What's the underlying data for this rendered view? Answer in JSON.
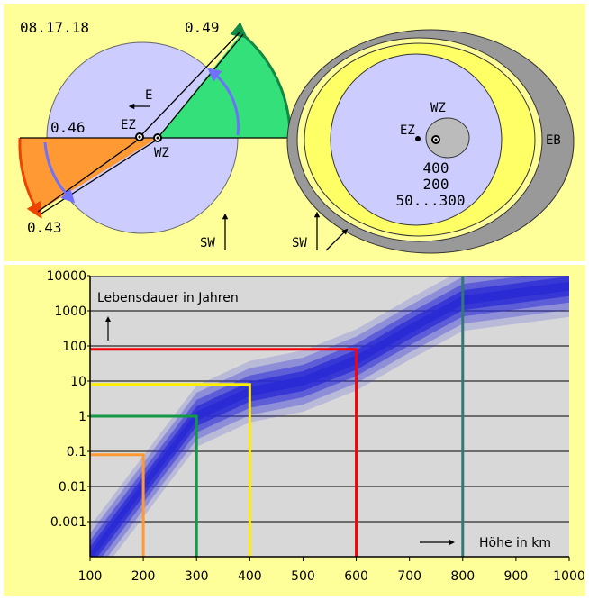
{
  "date_label": "08.17.18",
  "diagram_left": {
    "value_top": "0.49",
    "value_left": "0.46",
    "value_bottom": "0.43",
    "label_e": "E",
    "label_ez": "EZ",
    "label_wz": "WZ",
    "label_sw": "SW"
  },
  "diagram_right": {
    "label_wz": "WZ",
    "label_ez": "EZ",
    "label_eb": "EB",
    "label_sw": "SW",
    "distances": [
      "400",
      "200",
      "50...300"
    ]
  },
  "colors": {
    "panel_bg": "#ffff99",
    "disc": "#ccccff",
    "green": "#33e07a",
    "orange": "#ff9933",
    "grey": "#999999",
    "yellow": "#ffff66",
    "band": "#2b2bd6",
    "plot_bg": "#d8d8d8"
  },
  "chart_data": {
    "type": "line",
    "ylabel": "Lebensdauer in Jahren",
    "xlabel": "Höhe in km",
    "x_ticks": [
      "100",
      "200",
      "300",
      "400",
      "500",
      "600",
      "700",
      "800",
      "900",
      "1000"
    ],
    "y_ticks": [
      "10000",
      "1000",
      "100",
      "10",
      "1",
      "0.1",
      "0.01",
      "0.001"
    ],
    "xlim": [
      100,
      1000
    ],
    "ylim": [
      0.0001,
      10000
    ],
    "y_scale": "log",
    "band_center": [
      {
        "x": 100,
        "y": 0.0001
      },
      {
        "x": 200,
        "y": 0.01
      },
      {
        "x": 300,
        "y": 1
      },
      {
        "x": 400,
        "y": 5
      },
      {
        "x": 500,
        "y": 10
      },
      {
        "x": 600,
        "y": 40
      },
      {
        "x": 700,
        "y": 300
      },
      {
        "x": 800,
        "y": 2000
      },
      {
        "x": 1000,
        "y": 5000
      }
    ],
    "markers": [
      {
        "x": 200,
        "y": 0.08,
        "color": "#ff9933"
      },
      {
        "x": 300,
        "y": 1,
        "color": "#119944"
      },
      {
        "x": 400,
        "y": 8,
        "color": "#ffee00"
      },
      {
        "x": 600,
        "y": 80,
        "color": "#ff0000"
      }
    ],
    "vertical_line": {
      "x": 800,
      "color": "#337777"
    }
  }
}
